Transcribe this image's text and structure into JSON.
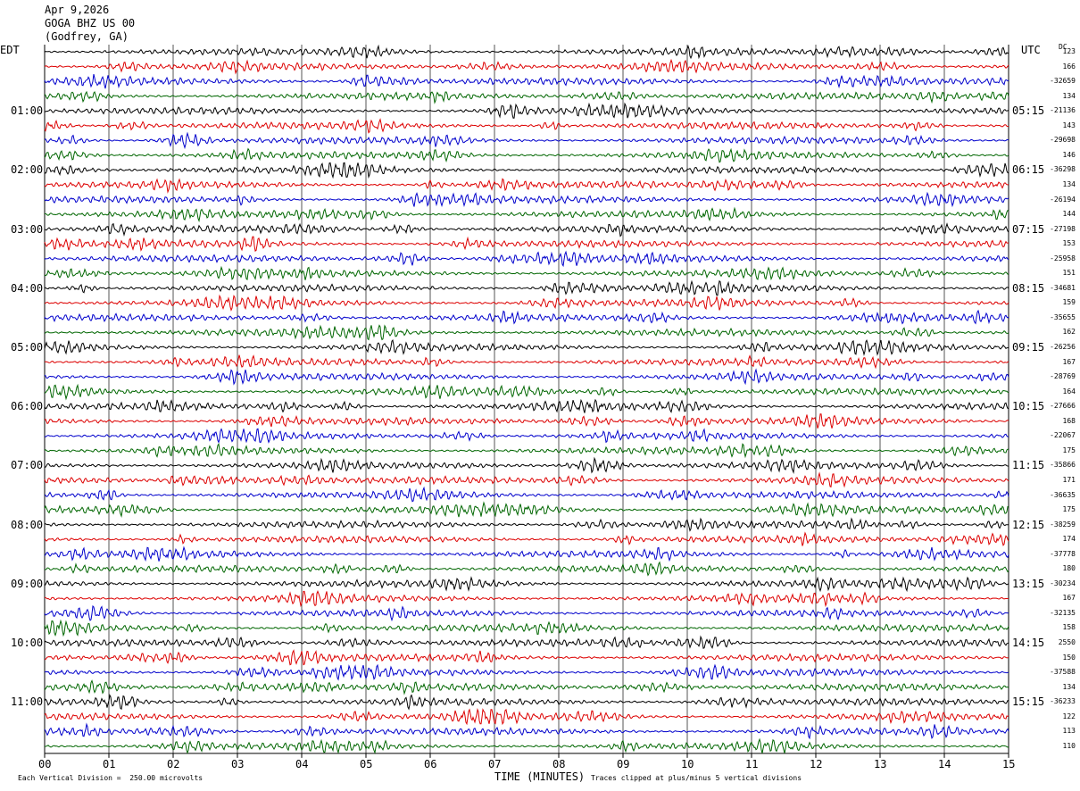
{
  "header": {
    "date": "Apr 9,2026",
    "station": "GOGA BHZ US 00",
    "location": "(Godfrey, GA)"
  },
  "left_tz": "EDT",
  "right_tz": "UTC",
  "dc_label": "DC",
  "footer": {
    "scale_note": "Each Vertical Division =  250.00 microvolts",
    "xaxis_label": "TIME (MINUTES)",
    "clip_note": "Traces clipped at plus/minus 5 vertical divisions"
  },
  "colors": [
    "#000000",
    "#dd0000",
    "#0000cc",
    "#006600"
  ],
  "chart_data": {
    "type": "line",
    "chart_kind": "helicorder seismogram",
    "x_range": [
      0,
      15
    ],
    "x_ticks": [
      "00",
      "01",
      "02",
      "03",
      "04",
      "05",
      "06",
      "07",
      "08",
      "09",
      "10",
      "11",
      "12",
      "13",
      "14",
      "15"
    ],
    "xlabel": "TIME (MINUTES)",
    "rows": 48,
    "row_minutes": 15,
    "grid_vertical_lines": true,
    "left_hour_labels": [
      "01:00",
      "02:00",
      "03:00",
      "04:00",
      "05:00",
      "06:00",
      "07:00",
      "08:00",
      "09:00",
      "10:00",
      "11:00"
    ],
    "right_hour_labels": [
      "05:15",
      "06:15",
      "07:15",
      "08:15",
      "09:15",
      "10:15",
      "11:15",
      "12:15",
      "13:15",
      "14:15",
      "15:15"
    ],
    "dc_values": [
      "123",
      "166",
      "-32659",
      "134",
      "-21136",
      "143",
      "-29698",
      "146",
      "-36298",
      "134",
      "-26194",
      "144",
      "-27198",
      "153",
      "-25958",
      "151",
      "-34681",
      "159",
      "-35655",
      "162",
      "-26256",
      "167",
      "-28769",
      "164",
      "-27666",
      "168",
      "-22067",
      "175",
      "-35866",
      "171",
      "-36635",
      "175",
      "-38259",
      "174",
      "-37778",
      "180",
      "-30234",
      "167",
      "-32135",
      "158",
      "2550",
      "150",
      "-37588",
      "134",
      "-36233",
      "122",
      "113",
      "110"
    ],
    "trace_color_cycle": [
      "black",
      "red",
      "blue",
      "green"
    ]
  }
}
